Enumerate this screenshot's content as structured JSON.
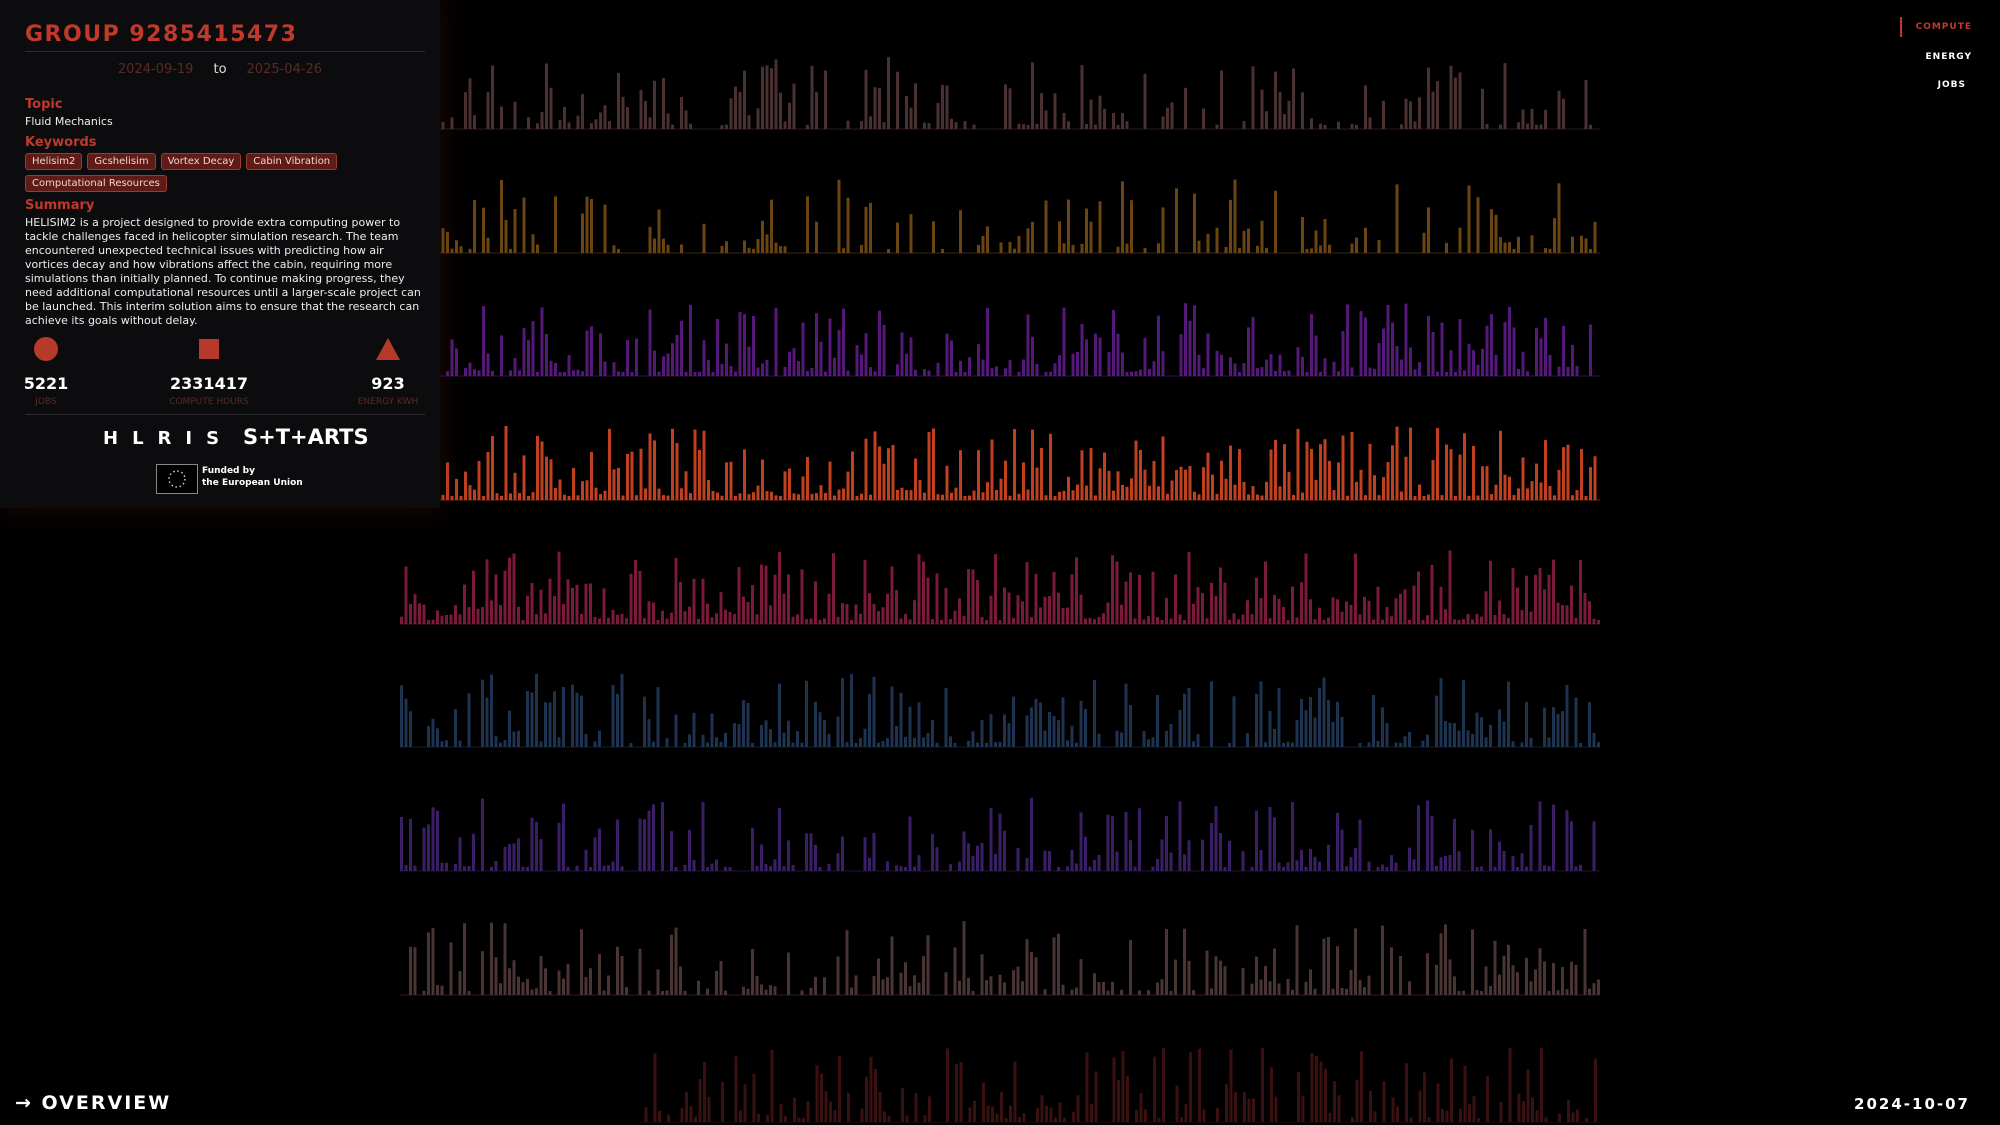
{
  "header": {
    "title": "GROUP 9285415473",
    "date_start": "2024-09-19",
    "date_sep": "to",
    "date_end": "2025-04-26"
  },
  "topic": {
    "label": "Topic",
    "value": "Fluid Mechanics"
  },
  "keywords": {
    "label": "Keywords",
    "items": [
      "Helisim2",
      "Gcshelisim",
      "Vortex Decay",
      "Cabin Vibration",
      "Computational Resources"
    ]
  },
  "summary": {
    "label": "Summary",
    "text": "HELISIM2 is a project designed to provide extra computing power to tackle challenges faced in helicopter simulation research. The team encountered unexpected technical issues with predicting how air vortices decay and how vibrations affect the cabin, requiring more simulations than initially planned. To continue making progress, they need additional computational resources until a larger-scale project can be launched. This interim solution aims to ensure that the research can achieve its goals without delay."
  },
  "stats": [
    {
      "value": 5221,
      "label": "JOBS"
    },
    {
      "value": 2331417,
      "label": "COMPUTE HOURS"
    },
    {
      "value": 923,
      "label": "ENERGY KWH"
    }
  ],
  "logos": {
    "hlris": "HLRIS",
    "starts": "S+T+ARTS",
    "funded_line1": "Funded by",
    "funded_line2": "the European Union"
  },
  "nav": [
    "COMPUTE",
    "ENERGY",
    "JOBS"
  ],
  "footer": {
    "link": "→ OVERVIEW",
    "date": "2024-10-07"
  }
}
